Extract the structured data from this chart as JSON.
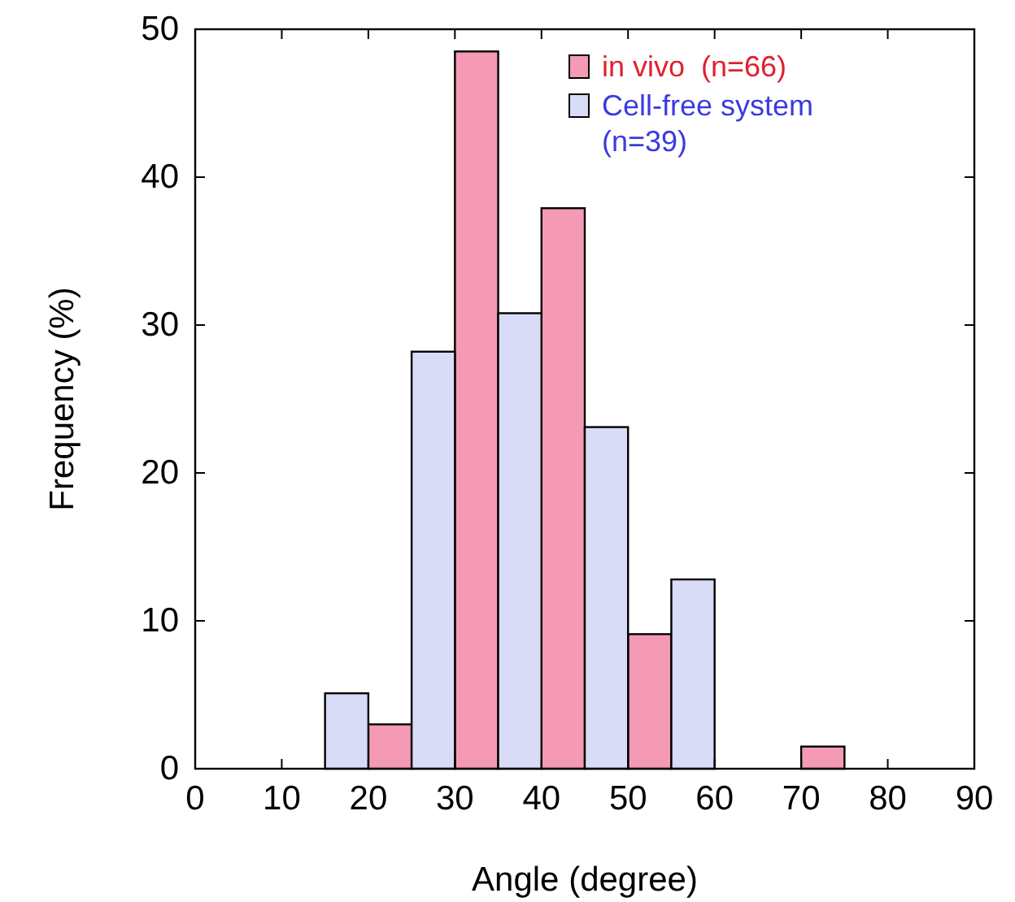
{
  "chart_data": {
    "type": "histogram",
    "xlabel": "Angle (degree)",
    "ylabel": "Frequency (%)",
    "bins": [
      10,
      20,
      30,
      40,
      50,
      60,
      70,
      80
    ],
    "series": [
      {
        "name": "in vivo  (n=66)",
        "color": "#f49ab4",
        "values": [
          0,
          3.0,
          48.5,
          37.9,
          9.1,
          0,
          1.5
        ]
      },
      {
        "name": "Cell-free system (n=39)",
        "color": "#d9dcf7",
        "values": [
          5.1,
          28.2,
          30.8,
          23.1,
          12.8,
          0,
          0
        ]
      }
    ],
    "xlim": [
      0,
      90
    ],
    "xticks": [
      0,
      10,
      20,
      30,
      40,
      50,
      60,
      70,
      80,
      90
    ],
    "ylim": [
      0,
      50
    ],
    "yticks": [
      0,
      10,
      20,
      30,
      40,
      50
    ],
    "grid": false,
    "legend": "top right"
  }
}
